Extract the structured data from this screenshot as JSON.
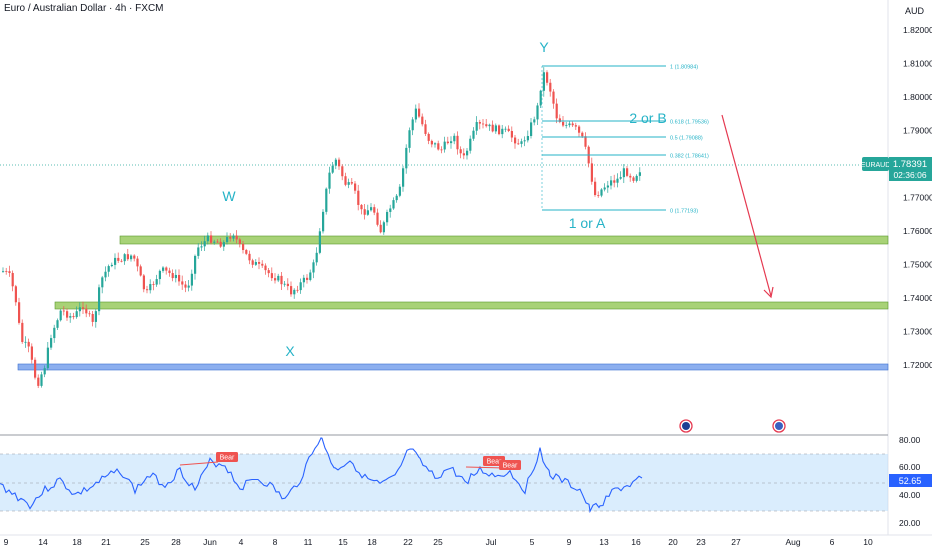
{
  "header": {
    "symbol_title": "Euro / Australian Dollar · 4h · FXCM",
    "currency": "AUD"
  },
  "price_axis": {
    "ticks": [
      "1.82000",
      "1.81000",
      "1.80000",
      "1.79000",
      "1.78000",
      "1.77000",
      "1.76000",
      "1.75000",
      "1.74000",
      "1.73000",
      "1.72000"
    ]
  },
  "last_price": {
    "symbol": "EURAUD",
    "value": "1.78391",
    "countdown": "02:36:06",
    "color": "#26a69a"
  },
  "time_axis": {
    "ticks": [
      "9",
      "14",
      "18",
      "21",
      "25",
      "28",
      "Jun",
      "4",
      "8",
      "11",
      "15",
      "18",
      "22",
      "25",
      "Jul",
      "5",
      "9",
      "13",
      "16",
      "20",
      "23",
      "27",
      "Aug",
      "6",
      "10"
    ]
  },
  "wave_labels": {
    "w": "W",
    "x": "X",
    "y": "Y",
    "one_or_a": "1 or A",
    "two_or_b": "2 or B"
  },
  "fib_levels": [
    {
      "label": "1 (1.80984)"
    },
    {
      "label": "0.618 (1.79536)"
    },
    {
      "label": "0.5 (1.79088)"
    },
    {
      "label": "0.382 (1.78641)"
    },
    {
      "label": "0 (1.77193)"
    }
  ],
  "zones": {
    "green_color": "#8bc34a",
    "blue_color": "#5b8de8"
  },
  "rsi": {
    "value": "52.65",
    "ticks": [
      "80.00",
      "60.00",
      "40.00",
      "20.00"
    ],
    "bear_label": "Bear",
    "line_color": "#2962ff",
    "band_color": "#bbdefb"
  },
  "colors": {
    "up": "#26a69a",
    "down": "#ef5350",
    "arrow": "#e53950",
    "fib": "#26b3c7"
  }
}
